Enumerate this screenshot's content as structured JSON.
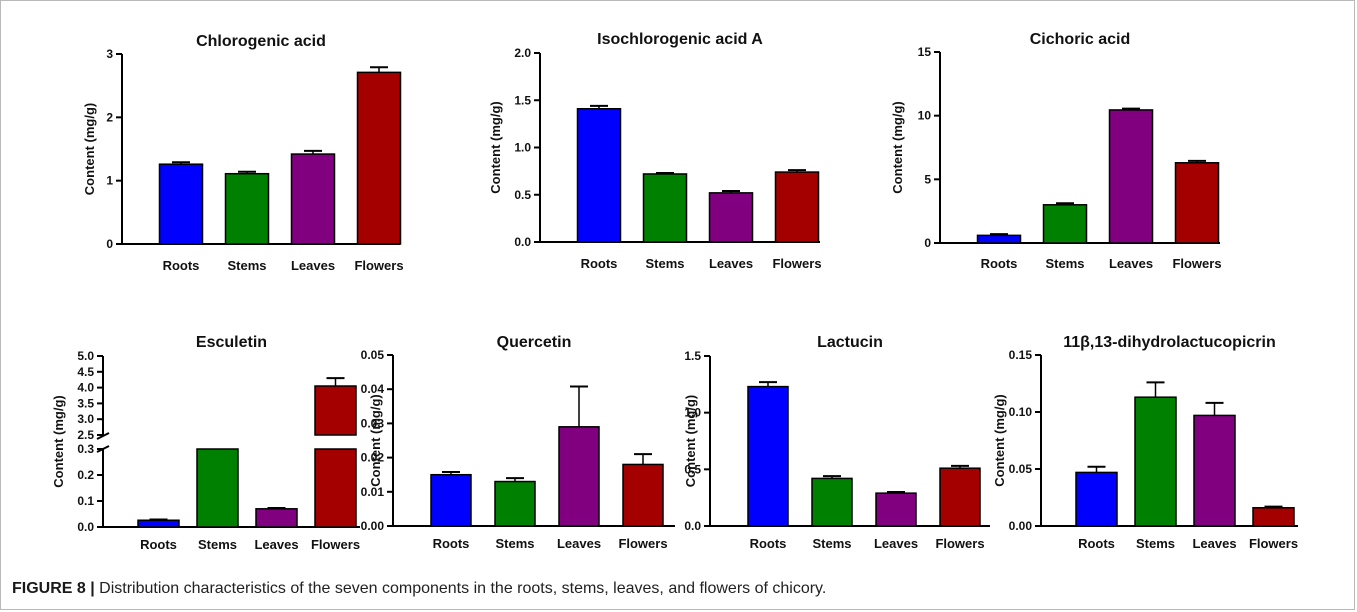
{
  "caption": {
    "label": "FIGURE 8 |",
    "text": "Distribution characteristics of the seven components in the roots, stems, leaves, and flowers of chicory."
  },
  "colors": {
    "roots": "#0000ff",
    "stems": "#008000",
    "leaves": "#800080",
    "flowers": "#a50000",
    "outline": "#000000"
  },
  "chart_data": [
    {
      "type": "bar",
      "title": "Chlorogenic acid",
      "ylabel": "Content (mg/g)",
      "categories": [
        "Roots",
        "Stems",
        "Leaves",
        "Flowers"
      ],
      "values": [
        1.26,
        1.11,
        1.42,
        2.71
      ],
      "errors": [
        0.03,
        0.03,
        0.05,
        0.08
      ],
      "ylim": [
        0,
        3
      ],
      "yticks": [
        0,
        1,
        2,
        3
      ],
      "ytick_labels": [
        "0",
        "1",
        "2",
        "3"
      ]
    },
    {
      "type": "bar",
      "title": "Isochlorogenic acid A",
      "ylabel": "Content (mg/g)",
      "categories": [
        "Roots",
        "Stems",
        "Leaves",
        "Flowers"
      ],
      "values": [
        1.41,
        0.72,
        0.52,
        0.74
      ],
      "errors": [
        0.03,
        0.01,
        0.02,
        0.02
      ],
      "ylim": [
        0,
        2
      ],
      "yticks": [
        0,
        0.5,
        1,
        1.5,
        2
      ],
      "ytick_labels": [
        "0.0",
        "0.5",
        "1.0",
        "1.5",
        "2.0"
      ]
    },
    {
      "type": "bar",
      "title": "Cichoric acid",
      "ylabel": "Content (mg/g)",
      "categories": [
        "Roots",
        "Stems",
        "Leaves",
        "Flowers"
      ],
      "values": [
        0.6,
        3.0,
        10.45,
        6.3
      ],
      "errors": [
        0.1,
        0.12,
        0.1,
        0.15
      ],
      "ylim": [
        0,
        15
      ],
      "yticks": [
        0,
        5,
        10,
        15
      ],
      "ytick_labels": [
        "0",
        "5",
        "10",
        "15"
      ]
    },
    {
      "type": "bar",
      "title": "Esculetin",
      "ylabel": "Content (mg/g)",
      "categories": [
        "Roots",
        "Stems",
        "Leaves",
        "Flowers"
      ],
      "values": [
        0.026,
        2.45,
        0.07,
        4.05
      ],
      "errors": [
        0.003,
        0,
        0.003,
        0.25
      ],
      "broken_axis": {
        "lower": [
          0,
          0.3
        ],
        "upper": [
          2.5,
          5.0
        ]
      },
      "yticks": [
        0,
        0.1,
        0.2,
        0.3,
        2.5,
        3.0,
        3.5,
        4.0,
        4.5,
        5.0
      ],
      "ytick_labels": [
        "0.0",
        "0.1",
        "0.2",
        "0.3",
        "2.5",
        "3.0",
        "3.5",
        "4.0",
        "4.5",
        "5.0"
      ]
    },
    {
      "type": "bar",
      "title": "Quercetin",
      "ylabel": "Content (mg/g)",
      "categories": [
        "Roots",
        "Stems",
        "Leaves",
        "Flowers"
      ],
      "values": [
        0.015,
        0.013,
        0.029,
        0.018
      ],
      "errors": [
        0.0008,
        0.001,
        0.0118,
        0.003
      ],
      "ylim": [
        0,
        0.05
      ],
      "yticks": [
        0,
        0.01,
        0.02,
        0.03,
        0.04,
        0.05
      ],
      "ytick_labels": [
        "0.00",
        "0.01",
        "0.02",
        "0.03",
        "0.04",
        "0.05"
      ]
    },
    {
      "type": "bar",
      "title": "Lactucin",
      "ylabel": "Content (mg/g)",
      "categories": [
        "Roots",
        "Stems",
        "Leaves",
        "Flowers"
      ],
      "values": [
        1.23,
        0.42,
        0.29,
        0.51
      ],
      "errors": [
        0.04,
        0.02,
        0.01,
        0.02
      ],
      "ylim": [
        0,
        1.5
      ],
      "yticks": [
        0,
        0.5,
        1,
        1.5
      ],
      "ytick_labels": [
        "0.0",
        "0.5",
        "1.0",
        "1.5"
      ]
    },
    {
      "type": "bar",
      "title": "11β,13-dihydrolactucopicrin",
      "ylabel": "Content (mg/g)",
      "categories": [
        "Roots",
        "Stems",
        "Leaves",
        "Flowers"
      ],
      "values": [
        0.047,
        0.113,
        0.097,
        0.016
      ],
      "errors": [
        0.005,
        0.013,
        0.011,
        0.001
      ],
      "ylim": [
        0,
        0.15
      ],
      "yticks": [
        0,
        0.05,
        0.1,
        0.15
      ],
      "ytick_labels": [
        "0.00",
        "0.05",
        "0.10",
        "0.15"
      ]
    }
  ]
}
